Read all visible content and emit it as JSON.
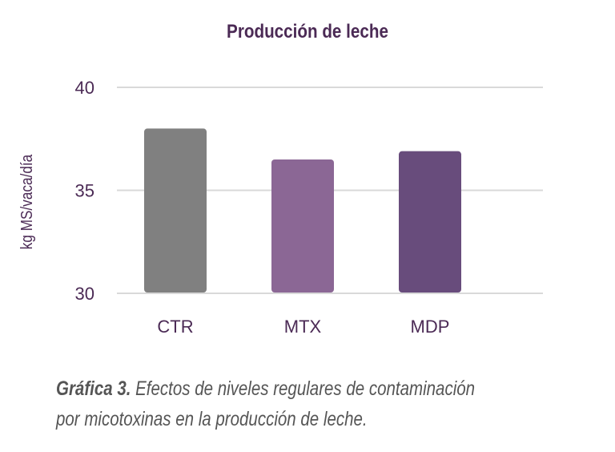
{
  "chart_data": {
    "type": "bar",
    "title": "Producción de leche",
    "xlabel": "",
    "ylabel": "kg MS/vaca/día",
    "categories": [
      "CTR",
      "MTX",
      "MDP"
    ],
    "values": [
      38.0,
      36.5,
      36.9
    ],
    "ylim": [
      30,
      40
    ],
    "yticks": [
      "40",
      "35",
      "30"
    ],
    "grid": true,
    "colors": [
      "#808080",
      "#8b6795",
      "#684c7c"
    ]
  },
  "caption": {
    "lead": "Gráfica 3.",
    "text": " Efectos de niveles regulares de contaminación por micotoxinas en la producción de leche."
  },
  "colors": {
    "title": "#4b2a55",
    "axis_text": "#4b2a55",
    "grid": "#d9d9d9",
    "caption": "#555555"
  }
}
